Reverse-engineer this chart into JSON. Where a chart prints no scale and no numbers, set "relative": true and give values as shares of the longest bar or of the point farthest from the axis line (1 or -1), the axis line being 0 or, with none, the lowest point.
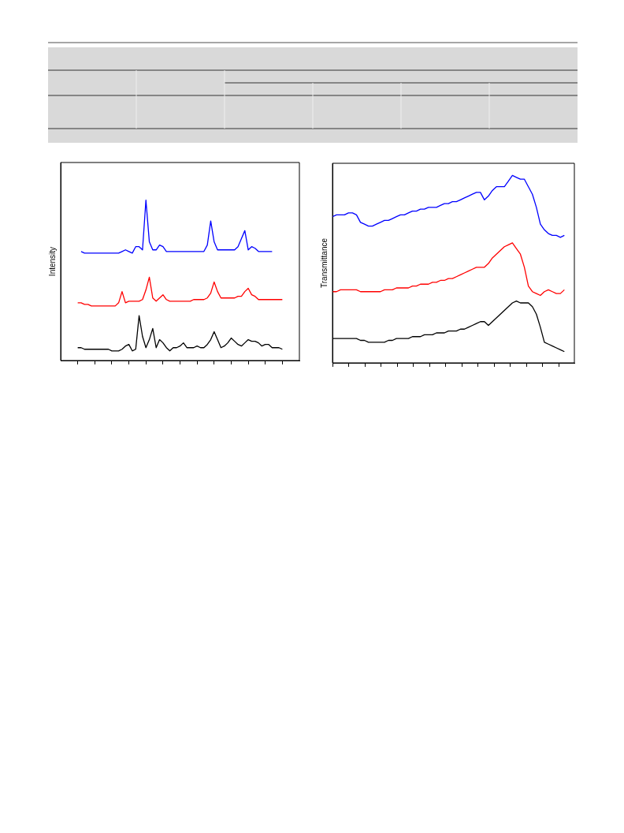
{
  "chart_data": [
    {
      "type": "line",
      "ylabel": "Intensity",
      "relative": true,
      "legend": false,
      "grid": false,
      "tick_labels": false,
      "marker": "none",
      "categories": [
        null,
        null,
        null,
        null,
        null,
        null,
        null,
        null,
        null,
        null,
        null,
        null,
        null,
        null,
        null,
        null,
        null,
        null,
        null,
        null,
        null,
        null,
        null,
        null,
        null,
        null,
        null,
        null,
        null,
        null,
        null,
        null,
        null,
        null,
        null,
        null,
        null,
        null,
        null,
        null,
        null,
        null,
        null,
        null,
        null,
        null,
        null,
        null,
        null,
        null,
        null,
        null,
        null,
        null,
        null,
        null,
        null,
        null,
        null,
        null,
        null
      ],
      "series": [
        {
          "color": "#0000ff",
          "values": [
            null,
            0.68,
            0.67,
            0.67,
            0.67,
            0.67,
            0.67,
            0.67,
            0.67,
            0.67,
            0.67,
            0.67,
            0.67,
            0.68,
            0.69,
            0.68,
            0.67,
            0.71,
            0.71,
            0.69,
            1.0,
            0.74,
            0.69,
            0.69,
            0.72,
            0.71,
            0.68,
            0.68,
            0.68,
            0.68,
            0.68,
            0.68,
            0.68,
            0.68,
            0.68,
            0.68,
            0.68,
            0.68,
            0.72,
            0.87,
            0.74,
            0.69,
            0.69,
            0.69,
            0.69,
            0.69,
            0.69,
            0.71,
            0.76,
            0.81,
            0.69,
            0.71,
            0.7,
            0.68,
            0.68,
            0.68,
            0.68,
            0.68,
            null,
            null,
            null
          ]
        },
        {
          "color": "#ff0000",
          "values": [
            0.36,
            0.36,
            0.35,
            0.35,
            0.34,
            0.34,
            0.34,
            0.34,
            0.34,
            0.34,
            0.34,
            0.34,
            0.36,
            0.43,
            0.36,
            0.37,
            0.37,
            0.37,
            0.37,
            0.38,
            0.44,
            0.52,
            0.39,
            0.37,
            0.39,
            0.41,
            0.38,
            0.37,
            0.37,
            0.37,
            0.37,
            0.37,
            0.37,
            0.37,
            0.38,
            0.38,
            0.38,
            0.38,
            0.39,
            0.42,
            0.49,
            0.43,
            0.39,
            0.39,
            0.39,
            0.39,
            0.39,
            0.4,
            0.4,
            0.43,
            0.45,
            0.41,
            0.4,
            0.38,
            0.38,
            0.38,
            0.38,
            0.38,
            0.38,
            0.38,
            0.38
          ]
        },
        {
          "color": "#000000",
          "values": [
            0.08,
            0.08,
            0.07,
            0.07,
            0.07,
            0.07,
            0.07,
            0.07,
            0.07,
            0.07,
            0.06,
            0.06,
            0.06,
            0.07,
            0.09,
            0.1,
            0.06,
            0.07,
            0.28,
            0.15,
            0.08,
            0.13,
            0.2,
            0.08,
            0.13,
            0.11,
            0.08,
            0.06,
            0.08,
            0.08,
            0.09,
            0.11,
            0.08,
            0.08,
            0.08,
            0.09,
            0.08,
            0.08,
            0.1,
            0.13,
            0.18,
            0.13,
            0.08,
            0.09,
            0.11,
            0.14,
            0.12,
            0.1,
            0.09,
            0.11,
            0.13,
            0.12,
            0.12,
            0.11,
            0.09,
            0.1,
            0.1,
            0.08,
            0.08,
            0.08,
            0.07
          ]
        }
      ]
    },
    {
      "type": "line",
      "ylabel": "Transmittance",
      "relative": true,
      "legend": false,
      "grid": false,
      "tick_labels": false,
      "marker": "none",
      "categories": [
        null,
        null,
        null,
        null,
        null,
        null,
        null,
        null,
        null,
        null,
        null,
        null,
        null,
        null,
        null,
        null,
        null,
        null,
        null,
        null,
        null,
        null,
        null,
        null,
        null,
        null,
        null,
        null,
        null,
        null,
        null,
        null,
        null,
        null,
        null,
        null,
        null,
        null,
        null,
        null,
        null,
        null,
        null,
        null,
        null,
        null,
        null,
        null,
        null,
        null,
        null,
        null,
        null,
        null,
        null,
        null,
        null,
        null,
        null
      ],
      "series": [
        {
          "color": "#0000ff",
          "values": [
            0.78,
            0.79,
            0.79,
            0.79,
            0.8,
            0.8,
            0.79,
            0.75,
            0.74,
            0.73,
            0.73,
            0.74,
            0.75,
            0.76,
            0.76,
            0.77,
            0.78,
            0.79,
            0.79,
            0.8,
            0.81,
            0.81,
            0.82,
            0.82,
            0.83,
            0.83,
            0.83,
            0.84,
            0.85,
            0.85,
            0.86,
            0.86,
            0.87,
            0.88,
            0.89,
            0.9,
            0.91,
            0.91,
            0.87,
            0.89,
            0.92,
            0.94,
            0.94,
            0.94,
            0.97,
            1.0,
            0.99,
            0.98,
            0.98,
            0.94,
            0.9,
            0.83,
            0.74,
            0.71,
            0.69,
            0.68,
            0.68,
            0.67,
            0.68
          ]
        },
        {
          "color": "#ff0000",
          "values": [
            0.38,
            0.38,
            0.39,
            0.39,
            0.39,
            0.39,
            0.39,
            0.38,
            0.38,
            0.38,
            0.38,
            0.38,
            0.38,
            0.39,
            0.39,
            0.39,
            0.4,
            0.4,
            0.4,
            0.4,
            0.41,
            0.41,
            0.42,
            0.42,
            0.42,
            0.43,
            0.43,
            0.44,
            0.44,
            0.45,
            0.45,
            0.46,
            0.47,
            0.48,
            0.49,
            0.5,
            0.51,
            0.51,
            0.51,
            0.53,
            0.56,
            0.58,
            0.6,
            0.62,
            0.63,
            0.64,
            0.61,
            0.58,
            0.51,
            0.41,
            0.38,
            0.37,
            0.36,
            0.38,
            0.39,
            0.38,
            0.37,
            0.37,
            0.39
          ]
        },
        {
          "color": "#000000",
          "values": [
            0.13,
            0.13,
            0.13,
            0.13,
            0.13,
            0.13,
            0.13,
            0.12,
            0.12,
            0.11,
            0.11,
            0.11,
            0.11,
            0.11,
            0.12,
            0.12,
            0.13,
            0.13,
            0.13,
            0.13,
            0.14,
            0.14,
            0.14,
            0.15,
            0.15,
            0.15,
            0.16,
            0.16,
            0.16,
            0.17,
            0.17,
            0.17,
            0.18,
            0.18,
            0.19,
            0.2,
            0.21,
            0.22,
            0.22,
            0.2,
            0.22,
            0.24,
            0.26,
            0.28,
            0.3,
            0.32,
            0.33,
            0.32,
            0.32,
            0.32,
            0.3,
            0.26,
            0.19,
            0.11,
            0.1,
            0.09,
            0.08,
            0.07,
            0.06
          ]
        }
      ]
    }
  ]
}
